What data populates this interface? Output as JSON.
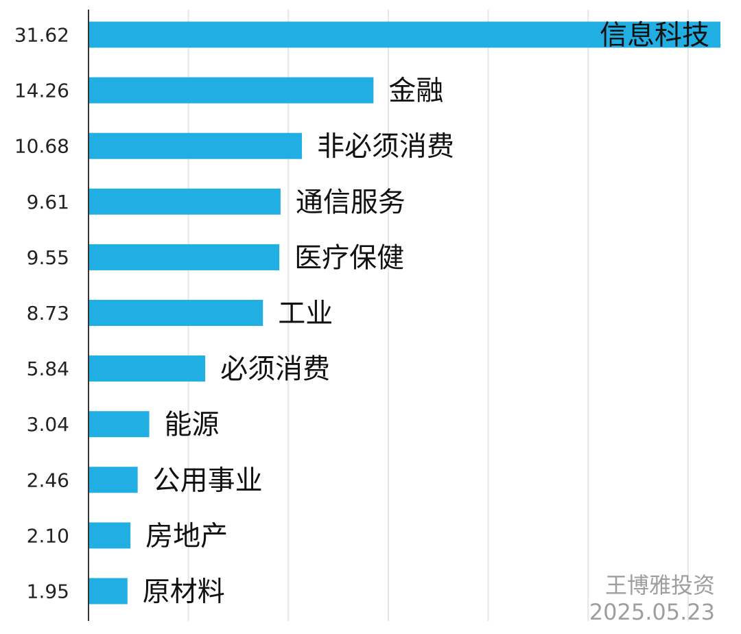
{
  "chart_data": {
    "type": "bar",
    "orientation": "horizontal",
    "categories": [
      "信息科技",
      "金融",
      "非必须消费",
      "通信服务",
      "医疗保健",
      "工业",
      "必须消费",
      "能源",
      "公用事业",
      "房地产",
      "原材料"
    ],
    "values": [
      31.62,
      14.26,
      10.68,
      9.61,
      9.55,
      8.73,
      5.84,
      3.04,
      2.46,
      2.1,
      1.95
    ],
    "value_labels": [
      "31.62",
      "14.26",
      "10.68",
      "9.61",
      "9.55",
      "8.73",
      "5.84",
      "3.04",
      "2.46",
      "2.10",
      "1.95"
    ],
    "xlim": [
      0,
      31.62
    ],
    "grid": "vertical",
    "bar_color": "#21aee3",
    "grid_color": "#e6e6e6",
    "axis_color": "#333333"
  },
  "watermark": {
    "author": "王博雅投资",
    "date": "2025.05.23"
  }
}
